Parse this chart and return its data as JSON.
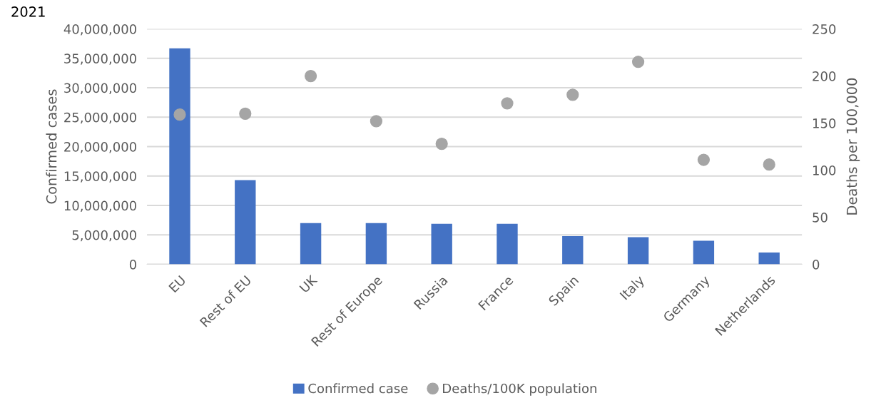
{
  "chart_data": {
    "type": "bar",
    "title": "2021",
    "categories": [
      "EU",
      "Rest of EU",
      "UK",
      "Rest of Europe",
      "Russia",
      "France",
      "Spain",
      "Italy",
      "Germany",
      "Netherlands"
    ],
    "series": [
      {
        "name": "Confirmed case",
        "color": "#4472c4",
        "values": [
          36700000,
          14300000,
          7000000,
          7000000,
          6900000,
          6900000,
          4800000,
          4600000,
          4000000,
          2000000
        ]
      },
      {
        "name": "Deaths/100K population",
        "type": "scatter",
        "axis": "y2",
        "color": "#a5a5a5",
        "marker": "circle",
        "values": [
          159,
          160,
          200,
          152,
          128,
          171,
          180,
          215,
          111,
          106
        ]
      }
    ],
    "ylabel": "Confirmed cases",
    "y2label": "Deaths per 100,000",
    "ylim": [
      0,
      40000000
    ],
    "yticks": [
      {
        "value": 0,
        "label": "0"
      },
      {
        "value": 5000000,
        "label": "5,000,000"
      },
      {
        "value": 10000000,
        "label": "10,000,000"
      },
      {
        "value": 15000000,
        "label": "15,000,000"
      },
      {
        "value": 20000000,
        "label": "20,000,000"
      },
      {
        "value": 25000000,
        "label": "25,000,000"
      },
      {
        "value": 30000000,
        "label": "30,000,000"
      },
      {
        "value": 35000000,
        "label": "35,000,000"
      },
      {
        "value": 40000000,
        "label": "40,000,000"
      }
    ],
    "y2lim": [
      0,
      250
    ],
    "y2ticks": [
      0,
      50,
      100,
      150,
      200,
      250
    ],
    "grid": "y",
    "legend": "bottom"
  }
}
